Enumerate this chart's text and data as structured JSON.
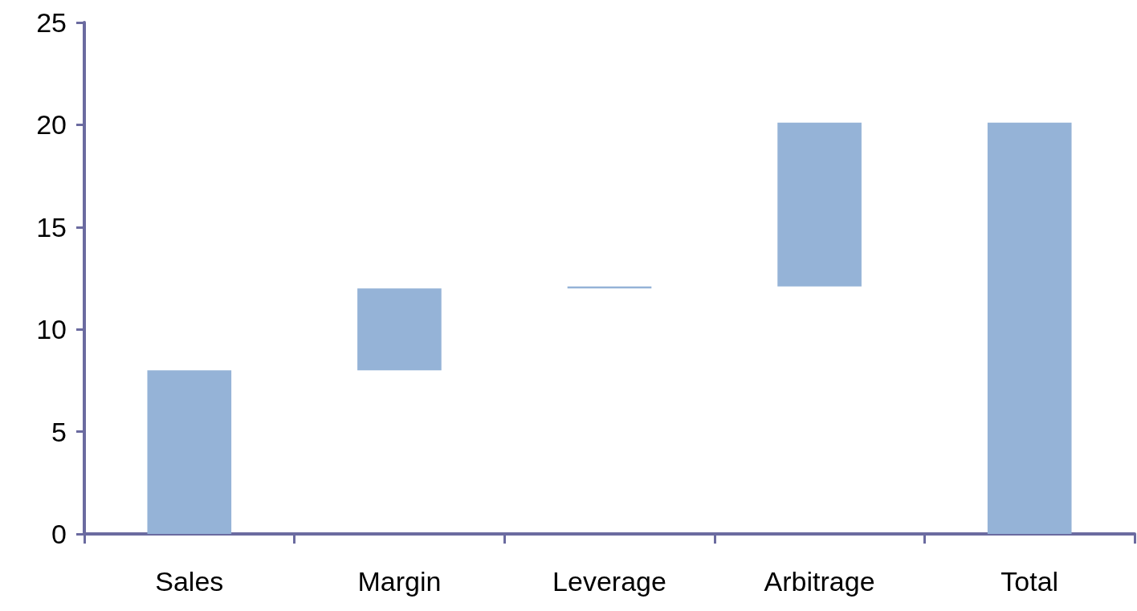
{
  "chart_data": {
    "type": "bar",
    "categories": [
      "Sales",
      "Margin",
      "Leverage",
      "Arbitrage",
      "Total"
    ],
    "values": [
      8,
      4,
      0.1,
      8,
      20.1
    ],
    "base": [
      0,
      8,
      12,
      12.1,
      0
    ],
    "color": "#95b3d7",
    "ylim": [
      0,
      25
    ],
    "yticks": [
      0,
      5,
      10,
      15,
      20,
      25
    ],
    "grid": false
  }
}
